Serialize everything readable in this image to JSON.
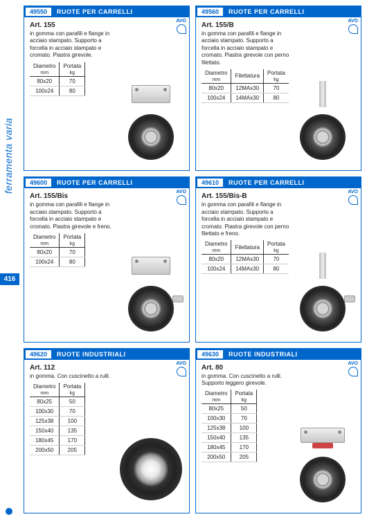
{
  "sidebar": {
    "category": "ferramenta varia",
    "page_num": "416"
  },
  "avo_label": "AVO",
  "cards": [
    {
      "code": "49550",
      "title": "RUOTE PER CARRELLI",
      "art": "Art. 155",
      "desc": "in gomma con parafili e flange in acciaio stampato. Supporto a forcella in acciaio stampato e cromato. Piastra girevole.",
      "cols": [
        "Diametro",
        "Portata"
      ],
      "units": [
        "mm",
        "kg"
      ],
      "rows": [
        [
          "80x20",
          "70"
        ],
        [
          "100x24",
          "80"
        ]
      ]
    },
    {
      "code": "49560",
      "title": "RUOTE PER CARRELLI",
      "art": "Art. 155/B",
      "desc": "in gomma con parafili e flange in acciaio stampato. Supporto a forcella in acciaio stampato e cromato. Piastra girevole con perno filettato.",
      "cols": [
        "Diametro",
        "Filettatura",
        "Portata"
      ],
      "units": [
        "mm",
        "",
        "kg"
      ],
      "rows": [
        [
          "80x20",
          "12MAx30",
          "70"
        ],
        [
          "100x24",
          "14MAx30",
          "80"
        ]
      ]
    },
    {
      "code": "49600",
      "title": "RUOTE PER CARRELLI",
      "art": "Art. 155/Bis",
      "desc": "in gomma con parafili e flange in acciaio stampato. Supporto a forcella in acciaio stampato e cromato. Piastra girevole e freno.",
      "cols": [
        "Diametro",
        "Portata"
      ],
      "units": [
        "mm",
        "kg"
      ],
      "rows": [
        [
          "80x20",
          "70"
        ],
        [
          "100x24",
          "80"
        ]
      ]
    },
    {
      "code": "49610",
      "title": "RUOTE PER CARRELLI",
      "art": "Art. 155/Bis-B",
      "desc": "in gomma con parafili e flange in acciaio stampato. Supporto a forcella in acciaio stampato e cromato.  Piastra girevole con perno filettato e freno.",
      "cols": [
        "Diametro",
        "Filettatura",
        "Portata"
      ],
      "units": [
        "mm",
        "",
        "kg"
      ],
      "rows": [
        [
          "80x20",
          "12MAx30",
          "70"
        ],
        [
          "100x24",
          "14MAx30",
          "80"
        ]
      ]
    },
    {
      "code": "49620",
      "title": "RUOTE INDUSTRIALI",
      "art": "Art. 112",
      "desc": "in gomma. Con cuscinetto a rulli.",
      "cols": [
        "Diametro",
        "Portata"
      ],
      "units": [
        "mm",
        "kg"
      ],
      "rows": [
        [
          "80x25",
          "50"
        ],
        [
          "100x30",
          "70"
        ],
        [
          "125x38",
          "100"
        ],
        [
          "150x40",
          "135"
        ],
        [
          "180x45",
          "170"
        ],
        [
          "200x50",
          "205"
        ]
      ]
    },
    {
      "code": "49630",
      "title": "RUOTE INDUSTRIALI",
      "art": "Art. 80",
      "desc": "in gomma. Con cuscinetto a rulli. Supporto leggero girevole.",
      "cols": [
        "Diametro",
        "Portata"
      ],
      "units": [
        "mm",
        "kg"
      ],
      "rows": [
        [
          "80x25",
          "50"
        ],
        [
          "100x30",
          "70"
        ],
        [
          "125x38",
          "100"
        ],
        [
          "150x40",
          "135"
        ],
        [
          "180x45",
          "170"
        ],
        [
          "200x50",
          "205"
        ]
      ]
    }
  ]
}
